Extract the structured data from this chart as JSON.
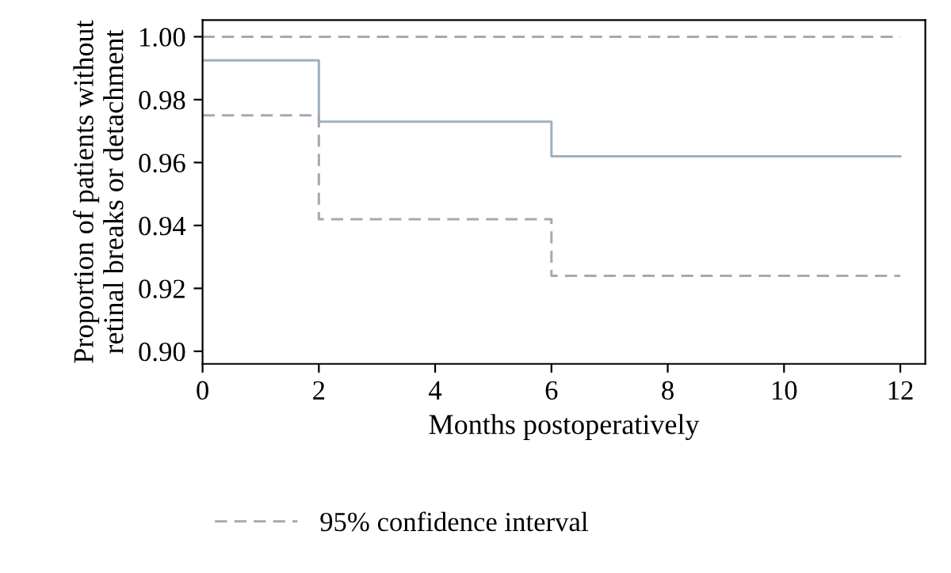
{
  "chart_data": {
    "type": "step",
    "xlabel": "Months postoperatively",
    "ylabel": "Proportion of patients without\nretinal breaks or detachment",
    "series": [
      {
        "color": "#9fb0c0",
        "line_style": "solid",
        "x": [
          0,
          2,
          6,
          12
        ],
        "values": [
          0.9925,
          0.973,
          0.962,
          0.962
        ]
      },
      {
        "name": "95% confidence interval",
        "color": "#a8a8b0",
        "line_style": "dashed",
        "x": [
          0,
          2,
          6,
          12
        ],
        "values": [
          0.975,
          0.942,
          0.924,
          0.924
        ]
      },
      {
        "color": "#a8a8b0",
        "line_style": "dashed",
        "x": [
          0,
          12
        ],
        "values": [
          1.0,
          1.0
        ]
      }
    ],
    "xlim": [
      0,
      12.43
    ],
    "ylim": [
      0.896,
      1.0053
    ],
    "xticks": [
      0,
      2,
      4,
      6,
      8,
      10,
      12
    ],
    "yticks": [
      {
        "value": 0.9,
        "label": "0.90"
      },
      {
        "value": 0.92,
        "label": "0.92"
      },
      {
        "value": 0.94,
        "label": "0.94"
      },
      {
        "value": 0.96,
        "label": "0.96"
      },
      {
        "value": 0.98,
        "label": "0.98"
      },
      {
        "value": 1.0,
        "label": "1.00"
      }
    ],
    "grid": false,
    "legend": "bottom",
    "marker": "none"
  }
}
